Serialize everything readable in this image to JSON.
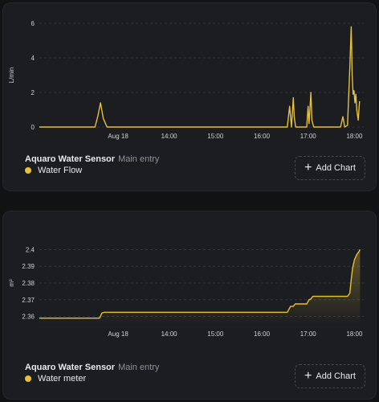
{
  "colors": {
    "accent": "#e6c13a",
    "card_bg": "#1c1d21",
    "text": "#e9eaed",
    "muted": "#8e9196",
    "grid": "#3a3c41"
  },
  "add_chart_label": "Add Chart",
  "chart_data": [
    {
      "type": "line",
      "title": "",
      "entity": "Aquaro Water Sensor",
      "subtitle": "Main entry",
      "series_name": "Water Flow",
      "ylabel": "L/min",
      "ylim": [
        0,
        6
      ],
      "yticks": [
        "0",
        "2",
        "4",
        "6"
      ],
      "ytick_values": [
        0,
        2,
        4,
        6
      ],
      "xlim_hours": [
        11.2,
        18.2
      ],
      "xticks": [
        "Aug 18",
        "14:00",
        "15:00",
        "16:00",
        "17:00",
        "18:00"
      ],
      "xtick_hours": [
        12.9,
        14,
        15,
        16,
        17,
        18
      ],
      "area_fill": false,
      "series": [
        {
          "name": "Water Flow",
          "x": [
            11.2,
            12.4,
            12.46,
            12.52,
            12.58,
            12.66,
            16.55,
            16.6,
            16.64,
            16.68,
            16.7,
            16.73,
            16.78,
            16.82,
            16.97,
            17.0,
            17.02,
            17.06,
            17.08,
            17.12,
            17.16,
            17.7,
            17.75,
            17.79,
            17.85,
            17.9,
            17.93,
            17.95,
            17.97,
            17.99,
            18.01,
            18.03,
            18.05,
            18.08,
            18.11
          ],
          "y": [
            0,
            0,
            0.6,
            1.4,
            0.5,
            0,
            0,
            1.2,
            0,
            1.7,
            0.6,
            0,
            0,
            0,
            0,
            1.2,
            0.2,
            2.0,
            0.4,
            0,
            0,
            0,
            0.6,
            0,
            0.1,
            3.5,
            5.8,
            3.0,
            1.9,
            2.1,
            1.4,
            1.9,
            1.0,
            0.4,
            1.5
          ]
        }
      ]
    },
    {
      "type": "area",
      "title": "",
      "entity": "Aquaro Water Sensor",
      "subtitle": "Main entry",
      "series_name": "Water meter",
      "ylabel": "m³",
      "ylim": [
        2.355,
        2.405
      ],
      "yticks": [
        "2.36",
        "2.37",
        "2.38",
        "2.39",
        "2.4"
      ],
      "ytick_values": [
        2.36,
        2.37,
        2.38,
        2.39,
        2.4
      ],
      "xlim_hours": [
        11.2,
        18.2
      ],
      "xticks": [
        "Aug 18",
        "14:00",
        "15:00",
        "16:00",
        "17:00",
        "18:00"
      ],
      "xtick_hours": [
        12.9,
        14,
        15,
        16,
        17,
        18
      ],
      "area_fill": true,
      "series": [
        {
          "name": "Water meter",
          "x": [
            11.2,
            11.8,
            11.82,
            12.5,
            12.55,
            12.6,
            16.55,
            16.62,
            16.68,
            16.72,
            16.78,
            16.97,
            17.02,
            17.06,
            17.1,
            17.85,
            17.9,
            17.93,
            17.96,
            18.0,
            18.05,
            18.1,
            18.12
          ],
          "y": [
            2.359,
            2.359,
            2.359,
            2.359,
            2.362,
            2.3625,
            2.3625,
            2.366,
            2.366,
            2.3675,
            2.3675,
            2.3675,
            2.37,
            2.3705,
            2.372,
            2.372,
            2.374,
            2.382,
            2.389,
            2.394,
            2.397,
            2.399,
            2.4
          ]
        }
      ]
    }
  ]
}
